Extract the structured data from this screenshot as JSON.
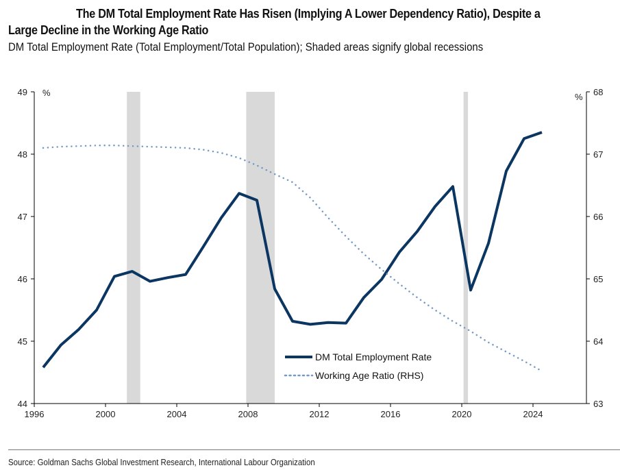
{
  "title_line1": "The DM Total Employment Rate Has Risen (Implying A Lower Dependency Ratio), Despite a",
  "title_line2": "Large Decline in the Working Age Ratio",
  "subtitle": "DM Total Employment Rate (Total Employment/Total Population); Shaded areas signify global recessions",
  "source": "Source: Goldman Sachs Global Investment Research, International Labour Organization",
  "colors": {
    "employment": "#0b3661",
    "working_age": "#7399c6",
    "recession": "#d9d9d9",
    "axis": "#000000"
  },
  "chart_data": {
    "type": "line",
    "title": "The DM Total Employment Rate Has Risen (Implying A Lower Dependency Ratio), Despite a Large Decline in the Working Age Ratio",
    "subtitle": "DM Total Employment Rate (Total Employment/Total Population); Shaded areas signify global recessions",
    "xlabel": "",
    "ylabel_left": "%",
    "ylabel_right": "%",
    "xlim": [
      1996,
      2027
    ],
    "ylim_left": [
      44,
      49
    ],
    "ylim_right": [
      63,
      68
    ],
    "x_ticks": [
      1996,
      2000,
      2004,
      2008,
      2012,
      2016,
      2020,
      2024
    ],
    "y_ticks_left": [
      44,
      45,
      46,
      47,
      48,
      49
    ],
    "y_ticks_right": [
      63,
      64,
      65,
      66,
      67,
      68
    ],
    "grid": false,
    "legend_position": "bottom-center",
    "recessions": [
      {
        "start": 2001.2,
        "end": 2001.95
      },
      {
        "start": 2007.9,
        "end": 2009.5
      },
      {
        "start": 2020.1,
        "end": 2020.35
      }
    ],
    "series": [
      {
        "name": "DM Total Employment Rate",
        "axis": "left",
        "style": "solid",
        "x": [
          1996.5,
          1997.5,
          1998.5,
          1999.5,
          2000.5,
          2001.5,
          2002.5,
          2003.5,
          2004.5,
          2005.5,
          2006.5,
          2007.5,
          2008.5,
          2009.5,
          2010.5,
          2011.5,
          2012.5,
          2013.5,
          2014.5,
          2015.5,
          2016.5,
          2017.5,
          2018.5,
          2019.5,
          2020.5,
          2021.5,
          2022.5,
          2023.5,
          2024.5
        ],
        "values": [
          44.58,
          44.94,
          45.19,
          45.5,
          46.04,
          46.12,
          45.96,
          46.02,
          46.07,
          46.52,
          46.98,
          47.37,
          47.26,
          45.84,
          45.32,
          45.27,
          45.3,
          45.29,
          45.7,
          45.99,
          46.43,
          46.76,
          47.16,
          47.48,
          45.82,
          46.57,
          47.73,
          48.25,
          48.35
        ]
      },
      {
        "name": "Working Age Ratio (RHS)",
        "axis": "right",
        "style": "dotted",
        "x": [
          1996.5,
          1997.5,
          1998.5,
          1999.5,
          2000.5,
          2001.5,
          2002.5,
          2003.5,
          2004.5,
          2005.5,
          2006.5,
          2007.5,
          2008.5,
          2009.5,
          2010.5,
          2011.5,
          2012.5,
          2013.5,
          2014.5,
          2015.5,
          2016.5,
          2017.5,
          2018.5,
          2019.5,
          2020.5,
          2021.5,
          2022.5,
          2023.5,
          2024.5
        ],
        "values": [
          67.1,
          67.12,
          67.13,
          67.14,
          67.14,
          67.13,
          67.12,
          67.11,
          67.1,
          67.07,
          67.02,
          66.94,
          66.82,
          66.68,
          66.55,
          66.3,
          65.98,
          65.68,
          65.4,
          65.15,
          64.92,
          64.7,
          64.5,
          64.32,
          64.16,
          63.98,
          63.83,
          63.68,
          63.52
        ]
      }
    ]
  }
}
